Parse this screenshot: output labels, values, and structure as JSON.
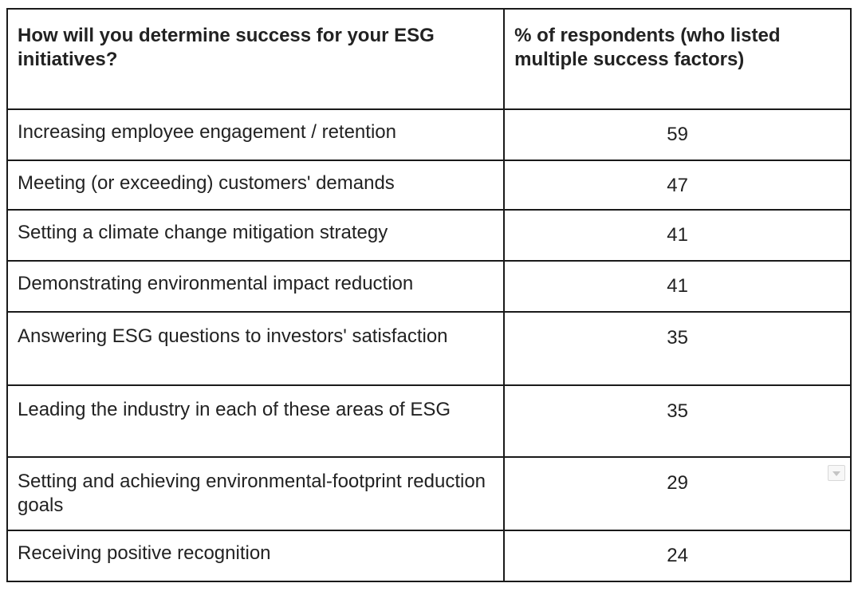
{
  "chart_data": {
    "type": "table",
    "columns": [
      "How will you determine success for your ESG initiatives?",
      "% of respondents (who listed multiple success factors)"
    ],
    "rows": [
      {
        "label": "Increasing employee engagement / retention",
        "value": "59"
      },
      {
        "label": "Meeting (or exceeding) customers' demands",
        "value": "47"
      },
      {
        "label": "Setting a climate change mitigation strategy",
        "value": "41"
      },
      {
        "label": "Demonstrating environmental impact reduction",
        "value": "41"
      },
      {
        "label": "Answering ESG questions to investors' satisfaction",
        "value": "35"
      },
      {
        "label": "Leading the industry in each of these areas of ESG",
        "value": "35"
      },
      {
        "label": "Setting and achieving environmental-footprint reduction goals",
        "value": "29"
      },
      {
        "label": "Receiving positive recognition",
        "value": "24"
      }
    ]
  },
  "icons": {
    "cell_menu": "chevron-down-icon"
  }
}
